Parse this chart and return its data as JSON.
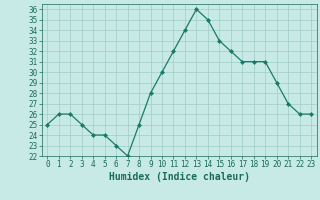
{
  "x": [
    0,
    1,
    2,
    3,
    4,
    5,
    6,
    7,
    8,
    9,
    10,
    11,
    12,
    13,
    14,
    15,
    16,
    17,
    18,
    19,
    20,
    21,
    22,
    23
  ],
  "y": [
    25,
    26,
    26,
    25,
    24,
    24,
    23,
    22,
    25,
    28,
    30,
    32,
    34,
    36,
    35,
    33,
    32,
    31,
    31,
    31,
    29,
    27,
    26,
    26
  ],
  "line_color": "#1a7a6a",
  "marker": "D",
  "marker_size": 2,
  "bg_color": "#c8eae6",
  "grid_color": "#a0ccc8",
  "xlabel": "Humidex (Indice chaleur)",
  "xlim": [
    -0.5,
    23.5
  ],
  "ylim": [
    22,
    36.5
  ],
  "xtick_labels": [
    "0",
    "1",
    "2",
    "3",
    "4",
    "5",
    "6",
    "7",
    "8",
    "9",
    "10",
    "11",
    "12",
    "13",
    "14",
    "15",
    "16",
    "17",
    "18",
    "19",
    "20",
    "21",
    "22",
    "23"
  ],
  "ytick_values": [
    22,
    23,
    24,
    25,
    26,
    27,
    28,
    29,
    30,
    31,
    32,
    33,
    34,
    35,
    36
  ],
  "tick_color": "#1a6b5a",
  "xlabel_fontsize": 7,
  "tick_fontsize": 5.5
}
